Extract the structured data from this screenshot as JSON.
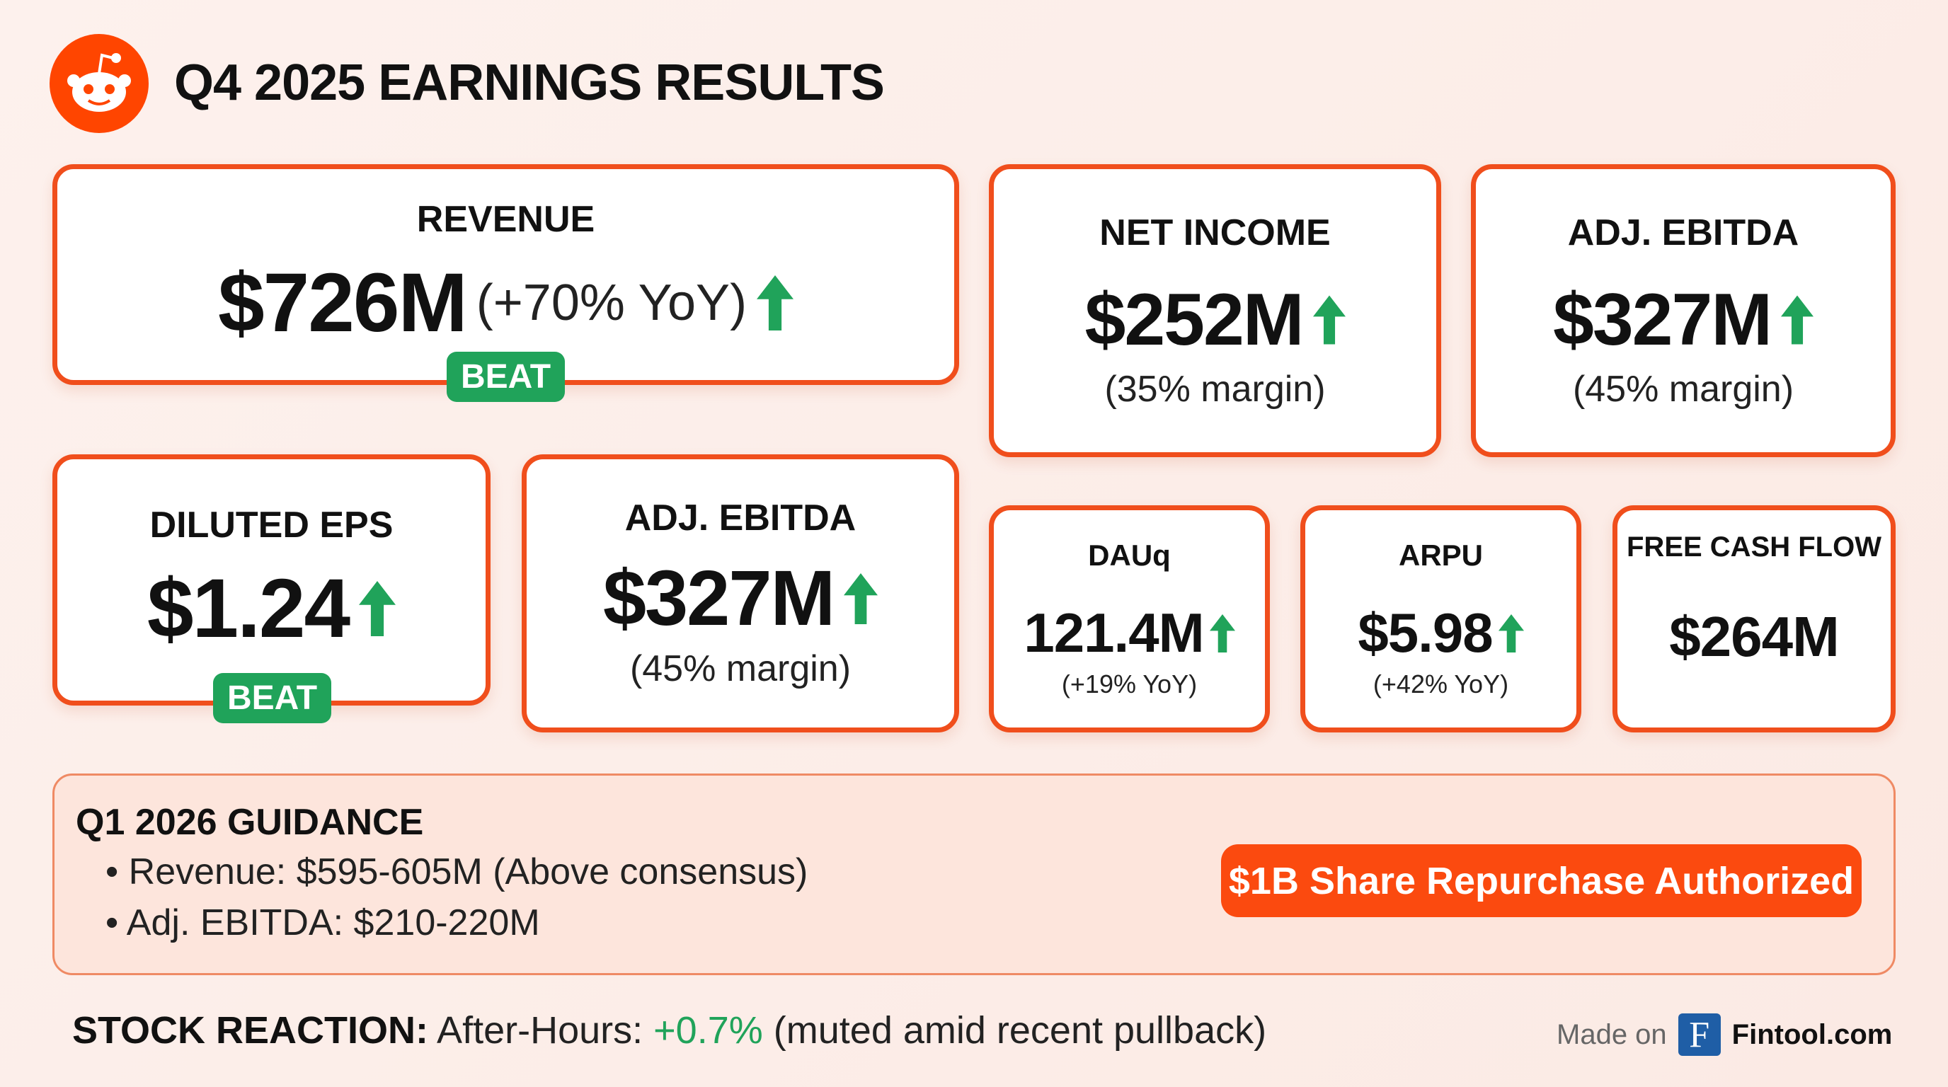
{
  "header": {
    "title": "Q4 2025 EARNINGS RESULTS",
    "logo": "reddit-snoo-logo"
  },
  "colors": {
    "accent": "#f04e1c",
    "up": "#20a35a",
    "button": "#fb4a0f"
  },
  "cards": {
    "revenue": {
      "label": "REVENUE",
      "value": "$726M",
      "change": "(+70% YoY)",
      "badge": "BEAT"
    },
    "net_income": {
      "label": "NET INCOME",
      "value": "$252M",
      "sub": "(35% margin)"
    },
    "adj_ebitda": {
      "label": "ADJ. EBITDA",
      "value": "$327M",
      "sub": "(45% margin)"
    },
    "eps": {
      "label": "DILUTED EPS",
      "value": "$1.24",
      "badge": "BEAT"
    },
    "adj_ebitda2": {
      "label": "ADJ. EBITDA",
      "value": "$327M",
      "sub": "(45% margin)"
    },
    "dauq": {
      "label": "DAUq",
      "value": "121.4M",
      "sub": "(+19% YoY)"
    },
    "arpu": {
      "label": "ARPU",
      "value": "$5.98",
      "sub": "(+42% YoY)"
    },
    "fcf": {
      "label": "FREE CASH FLOW",
      "value": "$264M"
    }
  },
  "guidance": {
    "title": "Q1 2026 GUIDANCE",
    "items": [
      "Revenue: $595-605M (Above consensus)",
      "Adj. EBITDA: $210-220M"
    ],
    "button": "$1B Share Repurchase Authorized"
  },
  "stock": {
    "label": "STOCK REACTION:",
    "prefix": "After-Hours:",
    "change": "+0.7%",
    "note": "(muted amid recent pullback)"
  },
  "footer": {
    "made_on": "Made on",
    "brand_letter": "F",
    "brand": "Fintool.com"
  }
}
